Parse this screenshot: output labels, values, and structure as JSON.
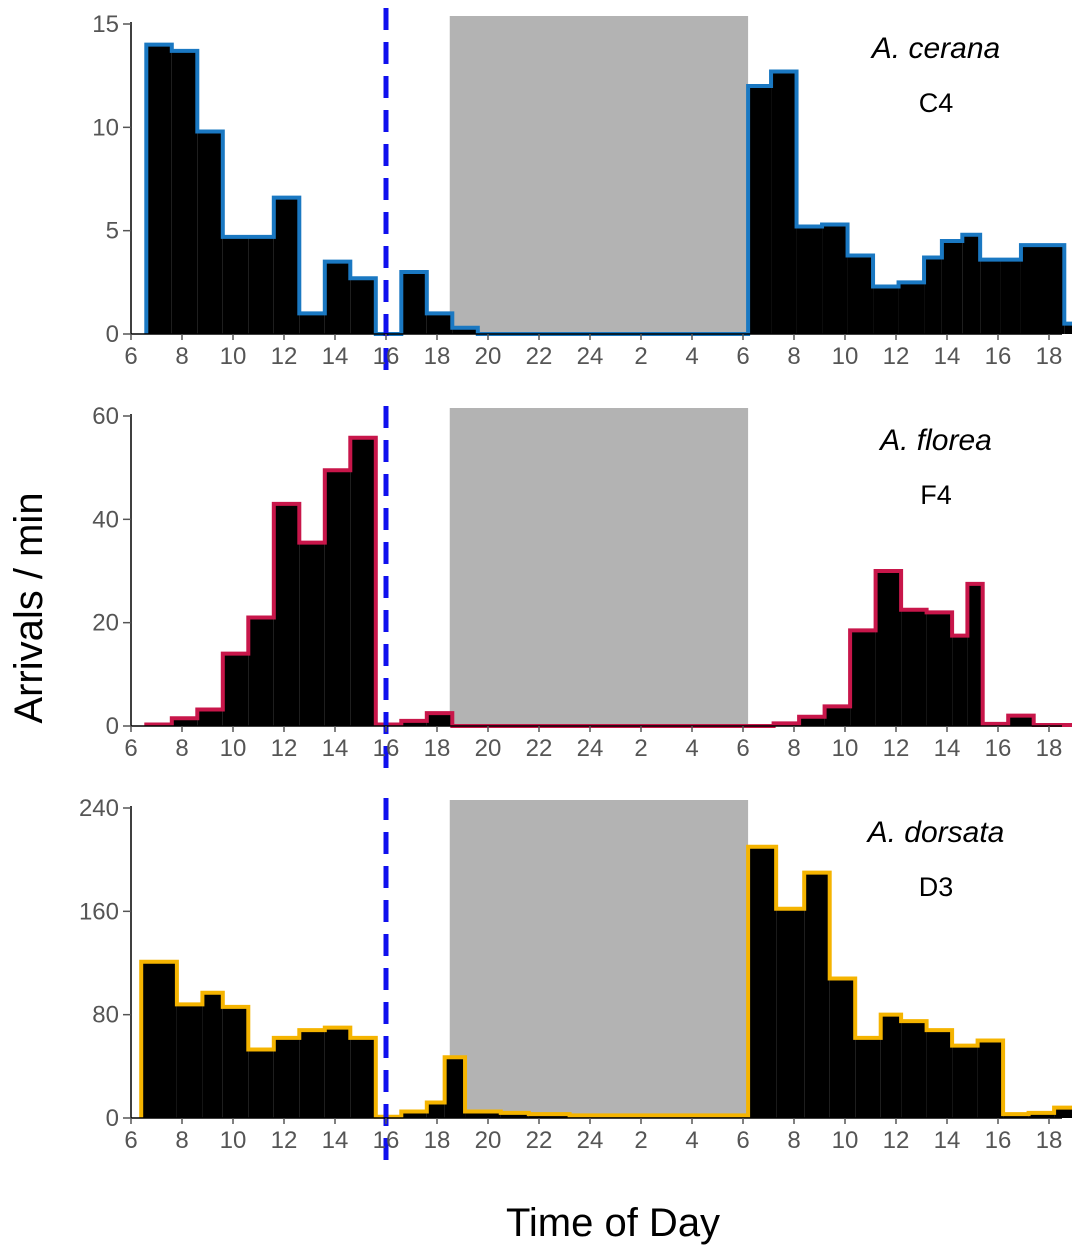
{
  "ylabel": "Arrivals / min",
  "xlabel": "Time of Day",
  "x_tick_labels": [
    "6",
    "8",
    "10",
    "12",
    "14",
    "16",
    "18",
    "20",
    "22",
    "24",
    "2",
    "4",
    "6",
    "8",
    "10",
    "12",
    "14",
    "16",
    "18"
  ],
  "chart_data": [
    {
      "type": "bar",
      "species": "A. cerana",
      "colony": "C4",
      "outline_color": "#1a78c2",
      "x_axis": {
        "start_hour": 6,
        "end_hour": 43,
        "note": "hours of day spanning two days"
      },
      "ylim": [
        0,
        15
      ],
      "y_ticks": [
        0,
        5,
        10,
        15
      ],
      "y_tick_labels": [
        "0",
        "5",
        "10",
        "15"
      ],
      "night_shade": [
        18.5,
        30.2
      ],
      "dashed_marker": 16,
      "bins": [
        [
          6.6,
          7.6,
          14
        ],
        [
          7.6,
          8.6,
          13.7
        ],
        [
          8.6,
          9.6,
          9.8
        ],
        [
          9.6,
          10.6,
          4.7
        ],
        [
          10.6,
          11.6,
          4.7
        ],
        [
          11.6,
          12.6,
          6.6
        ],
        [
          12.6,
          13.6,
          1
        ],
        [
          13.6,
          14.6,
          3.5
        ],
        [
          14.6,
          15.6,
          2.7
        ],
        [
          15.6,
          16.6,
          0
        ],
        [
          16.6,
          17.6,
          3
        ],
        [
          17.6,
          18.6,
          1
        ],
        [
          18.6,
          19.6,
          0.3
        ],
        [
          19.6,
          30.2,
          0
        ],
        [
          30.2,
          31.1,
          12
        ],
        [
          31.1,
          32.1,
          12.7
        ],
        [
          32.1,
          33.1,
          5.2
        ],
        [
          33.1,
          34.1,
          5.3
        ],
        [
          34.1,
          35.1,
          3.8
        ],
        [
          35.1,
          36.1,
          2.3
        ],
        [
          36.1,
          37.1,
          2.5
        ],
        [
          37.1,
          37.8,
          3.7
        ],
        [
          37.8,
          38.6,
          4.5
        ],
        [
          38.6,
          39.3,
          4.8
        ],
        [
          39.3,
          40.1,
          3.6
        ],
        [
          40.1,
          40.9,
          3.6
        ],
        [
          40.9,
          42.6,
          4.3
        ],
        [
          42.6,
          43,
          0.5
        ]
      ]
    },
    {
      "type": "bar",
      "species": "A. florea",
      "colony": "F4",
      "outline_color": "#c8164a",
      "x_axis": {
        "start_hour": 6,
        "end_hour": 43,
        "note": "hours of day spanning two days"
      },
      "ylim": [
        0,
        60
      ],
      "y_ticks": [
        0,
        20,
        40,
        60
      ],
      "y_tick_labels": [
        "0",
        "20",
        "40",
        "60"
      ],
      "night_shade": [
        18.5,
        30.2
      ],
      "dashed_marker": 16,
      "bins": [
        [
          6.6,
          7.6,
          0.3
        ],
        [
          7.6,
          8.6,
          1.5
        ],
        [
          8.6,
          9.6,
          3.2
        ],
        [
          9.6,
          10.6,
          14
        ],
        [
          10.6,
          11.6,
          21
        ],
        [
          11.6,
          12.6,
          43
        ],
        [
          12.6,
          13.6,
          35.5
        ],
        [
          13.6,
          14.6,
          49.5
        ],
        [
          14.6,
          15.6,
          55.8
        ],
        [
          15.6,
          16.6,
          0.3
        ],
        [
          16.6,
          17.6,
          1
        ],
        [
          17.6,
          18.6,
          2.5
        ],
        [
          18.6,
          30.2,
          0
        ],
        [
          30.2,
          31.2,
          0
        ],
        [
          31.2,
          32.2,
          0.5
        ],
        [
          32.2,
          33.2,
          1.8
        ],
        [
          33.2,
          34.2,
          3.8
        ],
        [
          34.2,
          35.2,
          18.5
        ],
        [
          35.2,
          36.2,
          30
        ],
        [
          36.2,
          37.2,
          22.5
        ],
        [
          37.2,
          38.2,
          22
        ],
        [
          38.2,
          38.8,
          17.5
        ],
        [
          38.8,
          39.4,
          27.5
        ],
        [
          39.4,
          40.4,
          0.4
        ],
        [
          40.4,
          41.4,
          2
        ],
        [
          41.4,
          43,
          0.2
        ]
      ]
    },
    {
      "type": "bar",
      "species": "A. dorsata",
      "colony": "D3",
      "outline_color": "#f5b400",
      "x_axis": {
        "start_hour": 6,
        "end_hour": 43,
        "note": "hours of day spanning two days"
      },
      "ylim": [
        0,
        240
      ],
      "y_ticks": [
        0,
        80,
        160,
        240
      ],
      "y_tick_labels": [
        "0",
        "80",
        "160",
        "240"
      ],
      "night_shade": [
        18.5,
        30.2
      ],
      "dashed_marker": 16,
      "bins": [
        [
          6.4,
          7.8,
          121
        ],
        [
          7.8,
          8.8,
          88
        ],
        [
          8.8,
          9.6,
          97
        ],
        [
          9.6,
          10.6,
          86
        ],
        [
          10.6,
          11.6,
          53
        ],
        [
          11.6,
          12.6,
          62
        ],
        [
          12.6,
          13.6,
          68
        ],
        [
          13.6,
          14.6,
          70
        ],
        [
          14.6,
          15.6,
          62
        ],
        [
          15.6,
          16.6,
          1
        ],
        [
          16.6,
          17.6,
          5
        ],
        [
          17.6,
          18.3,
          12
        ],
        [
          18.3,
          19.1,
          47
        ],
        [
          19.1,
          20.5,
          5
        ],
        [
          20.5,
          21.6,
          4
        ],
        [
          21.6,
          23.2,
          3
        ],
        [
          23.2,
          25,
          2
        ],
        [
          25,
          30.2,
          2
        ],
        [
          30.2,
          31.3,
          210
        ],
        [
          31.3,
          32.4,
          162
        ],
        [
          32.4,
          33.4,
          190
        ],
        [
          33.4,
          34.4,
          108
        ],
        [
          34.4,
          35.4,
          62
        ],
        [
          35.4,
          36.2,
          80
        ],
        [
          36.2,
          37.2,
          75
        ],
        [
          37.2,
          38.2,
          68
        ],
        [
          38.2,
          39.2,
          56
        ],
        [
          39.2,
          40.2,
          60
        ],
        [
          40.2,
          41.2,
          3
        ],
        [
          41.2,
          42.2,
          4
        ],
        [
          42.2,
          43,
          8
        ]
      ]
    }
  ]
}
